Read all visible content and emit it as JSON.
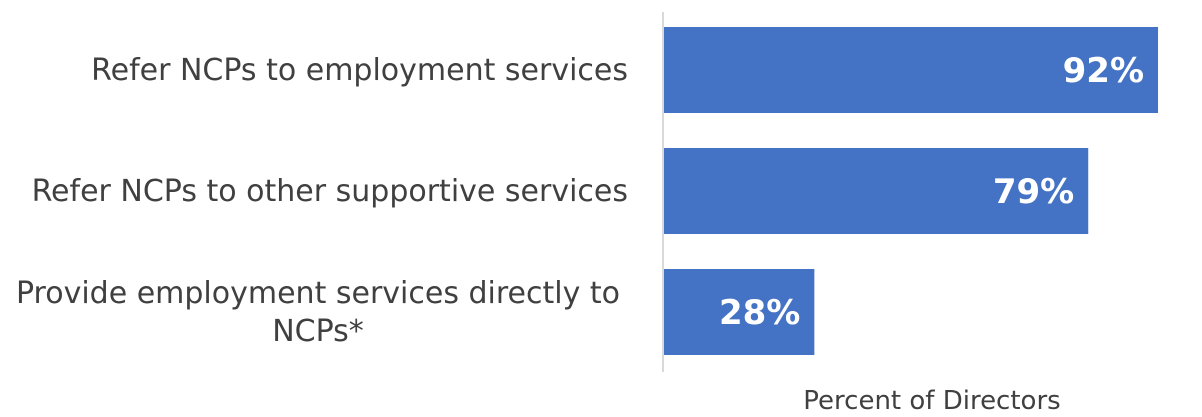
{
  "chart_data": {
    "type": "bar",
    "orientation": "horizontal",
    "categories": [
      "Refer NCPs to employment services",
      "Refer NCPs to other supportive services",
      "Provide employment services directly to NCPs*"
    ],
    "category_label_lines": [
      [
        "Refer NCPs to employment services"
      ],
      [
        "Refer NCPs to other supportive services"
      ],
      [
        "Provide employment services directly to",
        "NCPs*"
      ]
    ],
    "values": [
      92,
      79,
      28
    ],
    "data_labels": [
      "92%",
      "79%",
      "28%"
    ],
    "xlabel": "Percent of Directors",
    "xlim": [
      0,
      100
    ],
    "grid": false,
    "legend": "none",
    "bar_color": "#4472C4",
    "axis_color": "#d9d9d9",
    "label_color": "#404040"
  }
}
